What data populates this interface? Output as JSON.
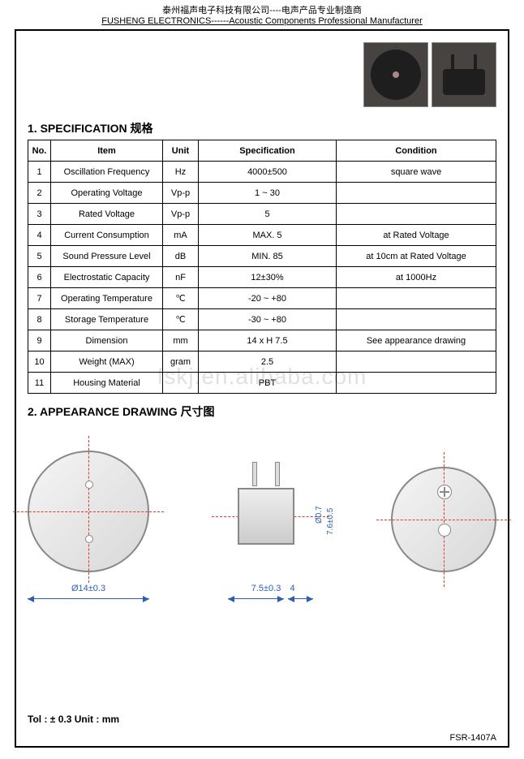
{
  "header_cn": "泰州福声电子科技有限公司----电声产品专业制造商",
  "header_en": "FUSHENG ELECTRONICS------Acoustic Components Professional Manufacturer",
  "spec_section_title": "1. SPECIFICATION  规格",
  "table": {
    "headers": {
      "no": "No.",
      "item": "Item",
      "unit": "Unit",
      "spec": "Specification",
      "cond": "Condition"
    },
    "rows": [
      {
        "no": "1",
        "item": "Oscillation Frequency",
        "unit": "Hz",
        "spec": "4000±500",
        "cond": "square wave"
      },
      {
        "no": "2",
        "item": "Operating Voltage",
        "unit": "Vp-p",
        "spec": "1 ~ 30",
        "cond": ""
      },
      {
        "no": "3",
        "item": "Rated Voltage",
        "unit": "Vp-p",
        "spec": "5",
        "cond": ""
      },
      {
        "no": "4",
        "item": "Current Consumption",
        "unit": "mA",
        "spec": "MAX. 5",
        "cond": "at Rated Voltage"
      },
      {
        "no": "5",
        "item": "Sound Pressure Level",
        "unit": "dB",
        "spec": "MIN. 85",
        "cond": "at 10cm at Rated Voltage"
      },
      {
        "no": "6",
        "item": "Electrostatic Capacity",
        "unit": "nF",
        "spec": "12±30%",
        "cond": "at 1000Hz"
      },
      {
        "no": "7",
        "item": "Operating Temperature",
        "unit": "℃",
        "spec": "-20 ~ +80",
        "cond": ""
      },
      {
        "no": "8",
        "item": "Storage Temperature",
        "unit": "℃",
        "spec": "-30 ~ +80",
        "cond": ""
      },
      {
        "no": "9",
        "item": "Dimension",
        "unit": "mm",
        "spec": "14 x H 7.5",
        "cond": "See appearance drawing"
      },
      {
        "no": "10",
        "item": "Weight (MAX)",
        "unit": "gram",
        "spec": "2.5",
        "cond": ""
      },
      {
        "no": "11",
        "item": "Housing Material",
        "unit": "",
        "spec": "PBT",
        "cond": ""
      }
    ]
  },
  "drawing_section_title": "2.  APPEARANCE DRAWING   尺寸图",
  "watermark": "fskj.en.alibaba.com",
  "drawing": {
    "top_view_diameter": "Ø14±0.3",
    "side_width": "7.5±0.3",
    "side_pin_len": "4",
    "pin_dia": "Ø0.7",
    "pin_spacing": "7.6±0.5",
    "unit": "mm",
    "dim_color": "#2a5eb8",
    "centerline_color": "#e33",
    "body_color": "#d8d8d8"
  },
  "tolerance_note": "Tol : ± 0.3     Unit : mm",
  "footer_code": "FSR-1407A"
}
